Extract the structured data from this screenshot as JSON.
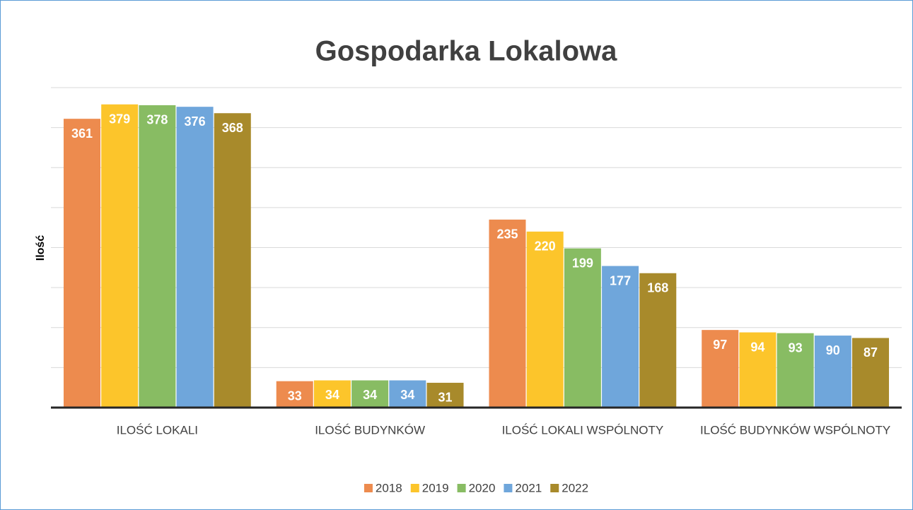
{
  "chart_data": {
    "type": "bar",
    "title": "Gospodarka Lokalowa",
    "y_label": "Ilość",
    "categories": [
      "ILOŚĆ LOKALI",
      "ILOŚĆ BUDYNKÓW",
      "ILOŚĆ LOKALI WSPÓLNOTY",
      "ILOŚĆ BUDYNKÓW WSPÓLNOTY"
    ],
    "series": [
      {
        "name": "2018",
        "color": "#ed8b4e",
        "values": [
          361,
          33,
          235,
          97
        ]
      },
      {
        "name": "2019",
        "color": "#fcc52b",
        "values": [
          379,
          34,
          220,
          94
        ]
      },
      {
        "name": "2020",
        "color": "#88bc63",
        "values": [
          378,
          34,
          199,
          93
        ]
      },
      {
        "name": "2021",
        "color": "#6fa6db",
        "values": [
          376,
          34,
          177,
          90
        ]
      },
      {
        "name": "2022",
        "color": "#a88a2b",
        "values": [
          368,
          31,
          168,
          87
        ]
      }
    ],
    "ylim": [
      0,
      400
    ],
    "yticks": [
      0,
      50,
      100,
      150,
      200,
      250,
      300,
      350,
      400
    ],
    "grid": true,
    "legend": "bottom"
  }
}
